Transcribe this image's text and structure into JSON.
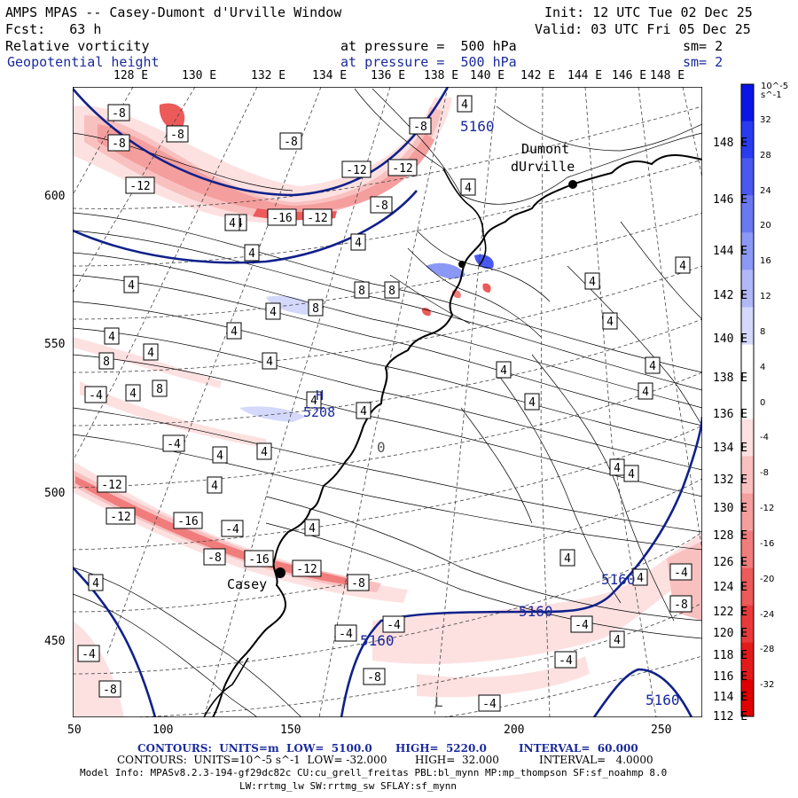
{
  "header": {
    "title": "AMPS MPAS -- Casey-Dumont d'Urville Window",
    "init": "Init: 12 UTC Tue 02 Dec 25",
    "fcst": "Fcst:   63 h",
    "valid": "Valid: 03 UTC Fri 05 Dec 25",
    "field1": {
      "name": "Relative vorticity",
      "level": "at pressure =  500 hPa",
      "sm": "sm= 2"
    },
    "field2": {
      "name": "Geopotential height",
      "level": "at pressure =  500 hPa",
      "sm": "sm= 2"
    }
  },
  "lon_top": [
    "128 E",
    "130 E",
    "132 E",
    "134 E",
    "136 E",
    "138 E",
    "140 E",
    "142 E",
    "144 E",
    "146 E",
    "148 E"
  ],
  "lat_right": [
    "148 E",
    "146 E",
    "144 E",
    "142 E",
    "140 E",
    "138 E",
    "136 E",
    "134 E",
    "132 E",
    "130 E",
    "128 E",
    "126 E",
    "124 E",
    "122 E",
    "120 E",
    "118 E",
    "116 E",
    "114 E",
    "112 E"
  ],
  "x_ticks": [
    "50",
    "100",
    "150",
    "200",
    "250"
  ],
  "y_ticks": [
    "600",
    "550",
    "500",
    "450"
  ],
  "stations": [
    {
      "name": "Dumont",
      "name2": "dUrville"
    },
    {
      "name": "Casey"
    }
  ],
  "height_labels": [
    "5160",
    "5160",
    "5160",
    "5160",
    "5160",
    "5208"
  ],
  "colorbar": {
    "unit": "10^-5 s^-1",
    "ticks": [
      "32",
      "28",
      "24",
      "20",
      "16",
      "12",
      "8",
      "4",
      "0",
      "-4",
      "-8",
      "-12",
      "-16",
      "-20",
      "-24",
      "-28",
      "-32"
    ],
    "colors": [
      "#0a14e6",
      "#2a3aee",
      "#4858f0",
      "#6a78f2",
      "#8c98f5",
      "#b0b8f8",
      "#d4d8fb",
      "#ffffff",
      "#ffffff",
      "#fde1e1",
      "#f9c0c0",
      "#f59e9e",
      "#f07c7c",
      "#ec5a5a",
      "#e83a3a",
      "#e41a1a",
      "#e00000"
    ]
  },
  "contour_labels": {
    "neg": [
      "-8",
      "-8",
      "-8",
      "-12",
      "-12",
      "-12",
      "-8",
      "-8",
      "-16",
      "-12",
      "-8",
      "-4",
      "-4",
      "-4",
      "-12",
      "-12",
      "-16",
      "-4",
      "-16",
      "-12",
      "-8",
      "-8",
      "-4",
      "-4",
      "-8",
      "-4",
      "-4",
      "-4",
      "-4",
      "-8",
      "-4",
      "-8"
    ],
    "pos": [
      "4",
      "4",
      "4",
      "4",
      "8",
      "8",
      "8",
      "4",
      "4",
      "4",
      "8",
      "8",
      "4",
      "4",
      "4",
      "4",
      "4",
      "4",
      "4",
      "4",
      "4",
      "4",
      "4",
      "4",
      "4",
      "4",
      "4",
      "4",
      "4",
      "4",
      "4",
      "4",
      "4",
      "4",
      "4",
      "4"
    ]
  },
  "footer": {
    "line1_prefix": "CONTOURS:  UNITS=m  LOW=  5100.0",
    "line1_high": "HIGH=  5220.0",
    "line1_int": "INTERVAL=  60.000",
    "line2_prefix": "CONTOURS:  UNITS=10^-5 s^-1  LOW= -32.000",
    "line2_high": "HIGH=  32.000",
    "line2_int": "INTERVAL=   4.0000",
    "model": "Model Info: MPASv8.2.3-194-gf29dc82c CU:cu_grell_freitas PBL:bl_mynn MP:mp_thompson SF:sf_noahmp 8.0",
    "model2": "LW:rrtmg_lw SW:rrtmg_sw SFLAY:sf_mynn"
  },
  "misc": {
    "low_marker": "L",
    "zero_label": "0",
    "h_label": "H"
  }
}
